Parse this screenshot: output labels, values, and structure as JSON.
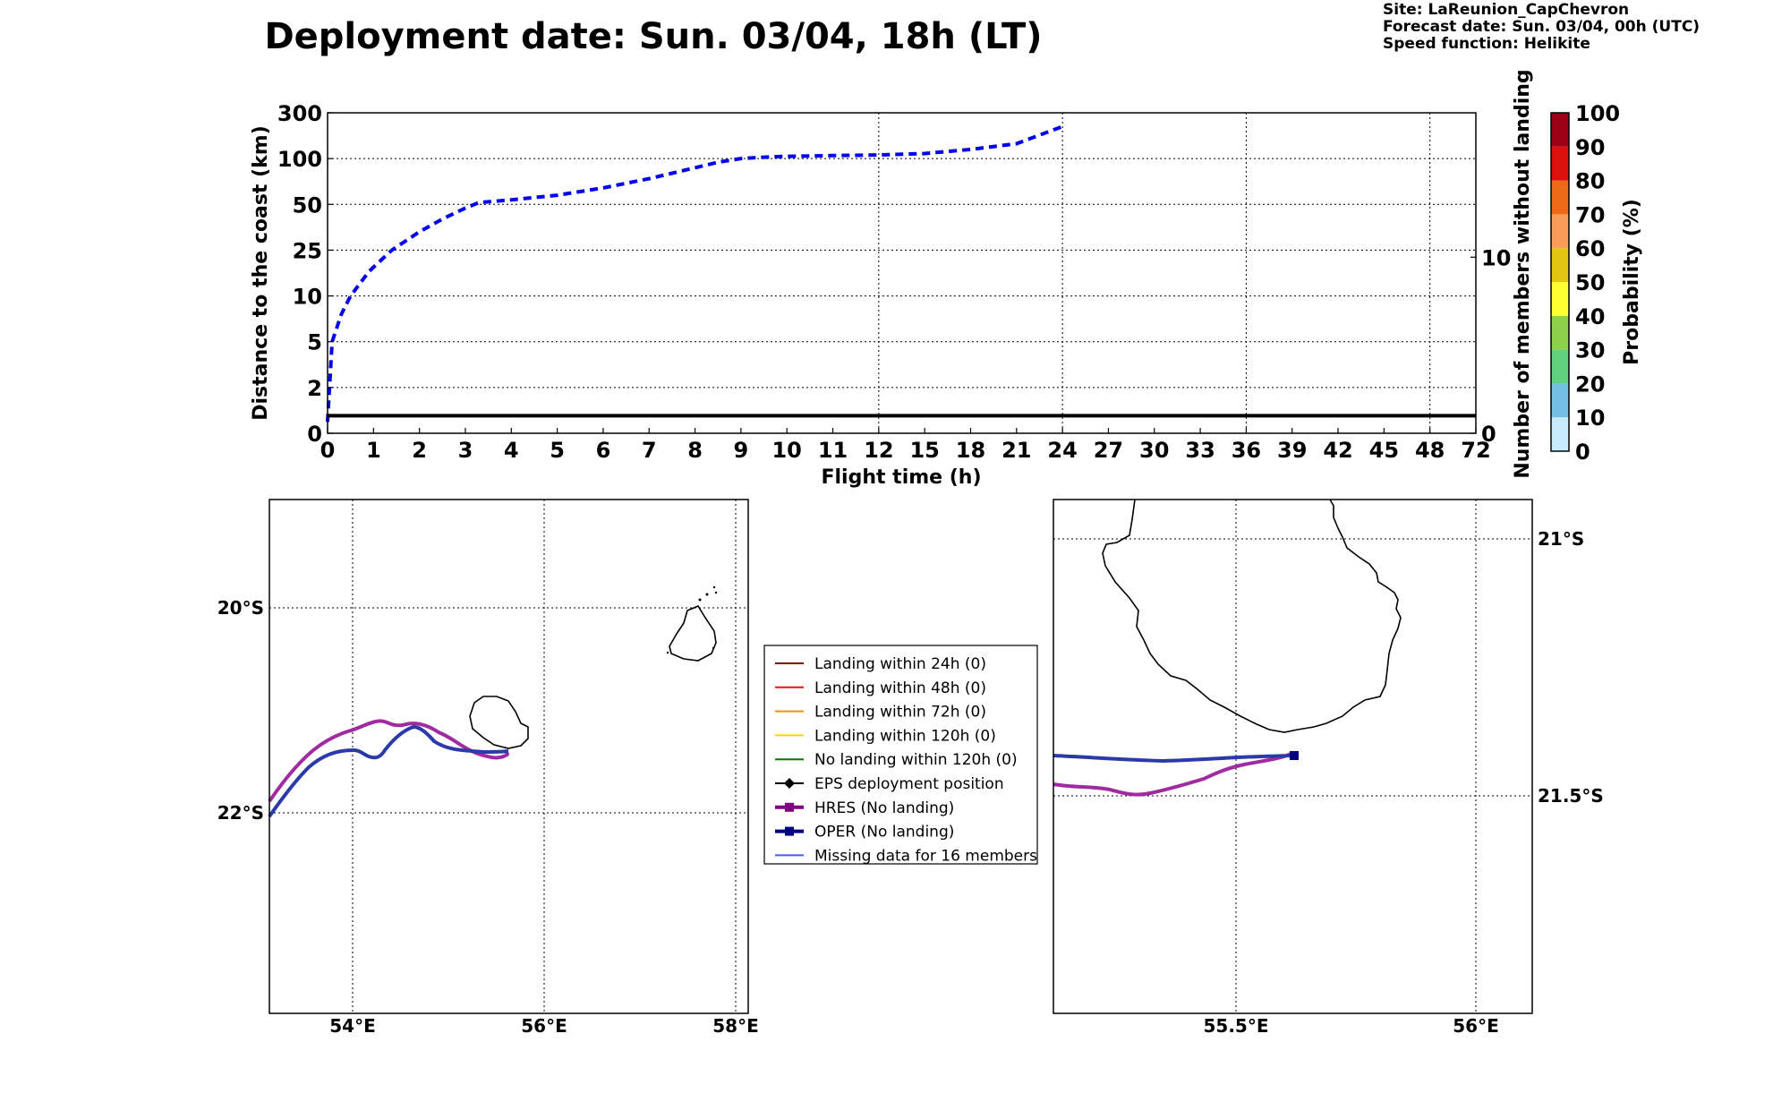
{
  "title": "Deployment date: Sun. 03/04, 18h (LT)",
  "info": {
    "site": "Site: LaReunion_CapChevron",
    "forecast": "Forecast date: Sun. 03/04, 00h (UTC)",
    "speed": "Speed function: Helikite"
  },
  "chart_data": [
    {
      "type": "line",
      "xlabel": "Flight time (h)",
      "ylabel": "Distance to the coast (km)",
      "ylabel_right": "Number of members without landing",
      "x_ticks": [
        "0",
        "1",
        "2",
        "3",
        "4",
        "5",
        "6",
        "7",
        "8",
        "9",
        "10",
        "11",
        "12",
        "15",
        "18",
        "21",
        "24",
        "27",
        "30",
        "33",
        "36",
        "39",
        "42",
        "45",
        "48",
        "72"
      ],
      "y_ticks": [
        "0",
        "2",
        "5",
        "10",
        "25",
        "50",
        "100",
        "300"
      ],
      "y_right_ticks": [
        "0",
        "10"
      ],
      "grid": true,
      "series": [
        {
          "style": "dashed",
          "color": "#0000ee",
          "x": [
            0,
            0.1,
            0.3,
            0.5,
            0.9,
            1.4,
            2.0,
            2.5,
            3.0,
            3.3,
            4.0,
            5.0,
            6.0,
            7.0,
            8.0,
            8.5,
            9.0,
            9.5,
            10.0,
            11.0,
            12.0,
            15.0,
            18.0,
            21.0,
            24.0
          ],
          "y": [
            0.5,
            5,
            8,
            10,
            18,
            25,
            35,
            42,
            48,
            52,
            55,
            60,
            68,
            78,
            90,
            96,
            100,
            106,
            110,
            113,
            116,
            122,
            140,
            165,
            240
          ]
        },
        {
          "style": "solid",
          "color": "#000000",
          "x": [
            0,
            72
          ],
          "members": [
            1,
            1
          ]
        }
      ]
    },
    {
      "type": "colorbar",
      "label": "Probability (%)",
      "ticks": [
        "0",
        "10",
        "20",
        "30",
        "40",
        "50",
        "60",
        "70",
        "80",
        "90",
        "100"
      ],
      "colors": [
        "#c8ecfb",
        "#74c0e4",
        "#60cf7e",
        "#8dd14a",
        "#ffff33",
        "#e3c412",
        "#f99b59",
        "#ee6a17",
        "#dd1010",
        "#9e0016"
      ]
    },
    {
      "type": "map",
      "region": "overview",
      "lon_ticks": [
        "54°E",
        "56°E",
        "58°E"
      ],
      "lat_ticks": [
        "20°S",
        "22°S"
      ],
      "tracks": [
        {
          "name": "HRES",
          "color": "#a02ba0"
        },
        {
          "name": "OPER",
          "color": "#2a3aa8"
        }
      ]
    },
    {
      "type": "map",
      "region": "zoom",
      "lon_ticks": [
        "55.5°E",
        "56°E"
      ],
      "lat_ticks": [
        "21°S",
        "21.5°S"
      ],
      "tracks": [
        {
          "name": "HRES",
          "color": "#a02ba0"
        },
        {
          "name": "OPER",
          "color": "#2a3aa8"
        }
      ]
    }
  ],
  "legend": [
    {
      "label": "Landing within 24h (0)",
      "color": "#8b0000",
      "marker": "none"
    },
    {
      "label": "Landing within 48h (0)",
      "color": "#ee1010",
      "marker": "none"
    },
    {
      "label": "Landing within 72h (0)",
      "color": "#ff8c00",
      "marker": "none"
    },
    {
      "label": "Landing within 120h (0)",
      "color": "#ffd700",
      "marker": "none"
    },
    {
      "label": "No landing within 120h (0)",
      "color": "#007700",
      "marker": "none"
    },
    {
      "label": "EPS deployment position",
      "color": "#000000",
      "marker": "diamond"
    },
    {
      "label": "HRES (No landing)",
      "color": "#800080",
      "marker": "square"
    },
    {
      "label": "OPER (No landing)",
      "color": "#000080",
      "marker": "square"
    },
    {
      "label": "Missing data for 16 members",
      "color": "#4b5aee",
      "marker": "none"
    }
  ]
}
